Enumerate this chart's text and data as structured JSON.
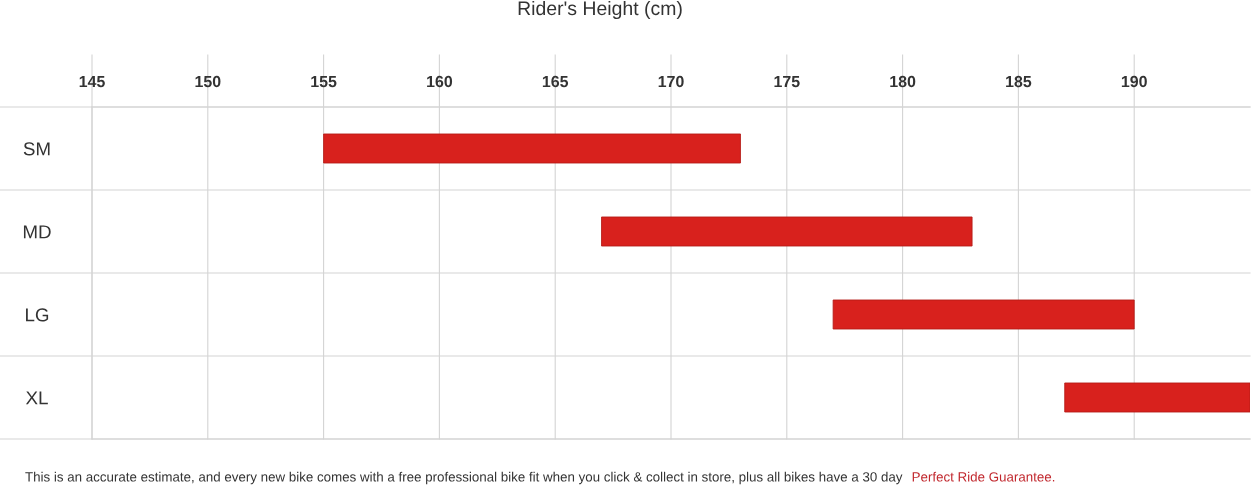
{
  "chart_data": {
    "type": "bar",
    "orientation": "horizontal",
    "xlabel": "Rider's Height (cm)",
    "categories": [
      "SM",
      "MD",
      "LG",
      "XL"
    ],
    "base": [
      155,
      167,
      177,
      187
    ],
    "values": [
      18,
      16,
      13,
      8
    ],
    "color": "#d8211d",
    "xlim": [
      145,
      195
    ],
    "xticks": [
      145,
      150,
      155,
      160,
      165,
      170,
      175,
      180,
      185,
      190
    ],
    "grid": true,
    "annotations": [
      "This is an accurate estimate, and every new bike comes with a free professional bike fit when you click & collect in store, plus all bikes have a 30 day",
      "Perfect Ride Guarantee."
    ]
  }
}
